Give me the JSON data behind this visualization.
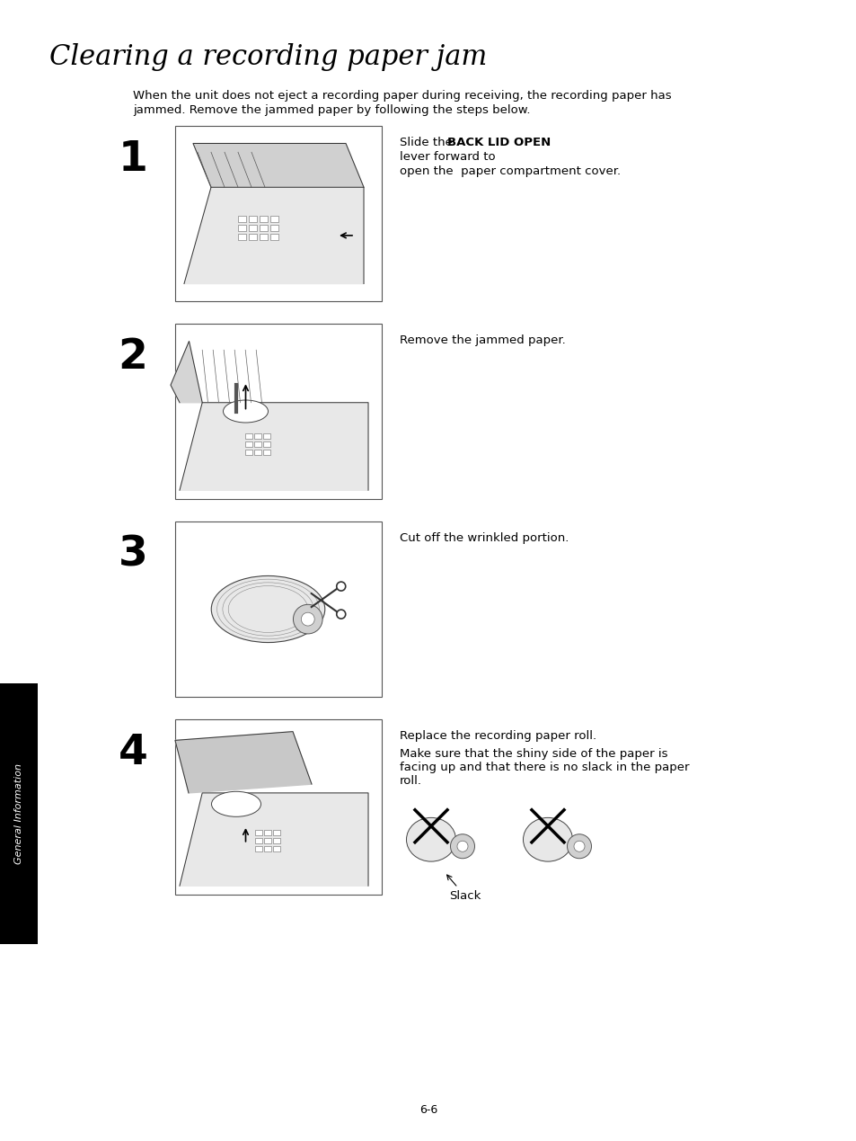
{
  "title": "Clearing a recording paper jam",
  "title_fontsize": 22,
  "bg_color": "#ffffff",
  "page_number": "6-6",
  "intro_text_line1": "When the unit does not eject a recording paper during receiving, the recording paper has",
  "intro_text_line2": "jammed. Remove the jammed paper by following the steps below.",
  "step1_text_plain": "Slide the ",
  "step1_text_bold": "BACK LID OPEN",
  "step1_text_rest": " lever forward to\nopen the  paper compartment cover.",
  "step2_text": "Remove the jammed paper.",
  "step3_text": "Cut off the wrinkled portion.",
  "step4_text_line1": "Replace the recording paper roll.",
  "step4_text_line2": "Make sure that the shiny side of the paper is\nfacing up and that there is no slack in the paper\nroll.",
  "slack_label": "Slack",
  "sidebar_text": "General Information",
  "sidebar_color": "#000000",
  "sidebar_text_color": "#ffffff",
  "body_fontsize": 9.5,
  "number_fontsize": 34,
  "img_line_color": "#222222",
  "img_fill_color": "#f5f5f5",
  "img_border_color": "#444444"
}
